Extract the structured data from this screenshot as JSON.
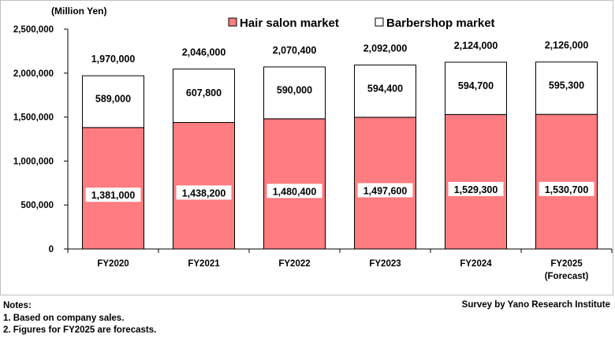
{
  "chart_data": {
    "type": "stacked-bar",
    "unit_label": "(Million Yen)",
    "categories": [
      "FY2020",
      "FY2021",
      "FY2022",
      "FY2023",
      "FY2024",
      "FY2025"
    ],
    "category_sublabels": [
      "",
      "",
      "",
      "",
      "",
      "(Forecast)"
    ],
    "series": [
      {
        "name": "Hair salon market",
        "color": "#ff7c80",
        "values": [
          1381000,
          1438200,
          1480400,
          1497600,
          1529300,
          1530700
        ],
        "labels": [
          "1,381,000",
          "1,438,200",
          "1,480,400",
          "1,497,600",
          "1,529,300",
          "1,530,700"
        ]
      },
      {
        "name": "Barbershop market",
        "color": "#ffffff",
        "values": [
          589000,
          607800,
          590000,
          594400,
          594700,
          595300
        ],
        "labels": [
          "589,000",
          "607,800",
          "590,000",
          "594,400",
          "594,700",
          "595,300"
        ]
      }
    ],
    "totals": [
      1970000,
      2046000,
      2070400,
      2092000,
      2124000,
      2126000
    ],
    "total_labels": [
      "1,970,000",
      "2,046,000",
      "2,070,400",
      "2,092,000",
      "2,124,000",
      "2,126,000"
    ],
    "ylim": [
      0,
      2500000
    ],
    "yticks": [
      0,
      500000,
      1000000,
      1500000,
      2000000,
      2500000
    ],
    "ytick_labels": [
      "0",
      "500,000",
      "1,000,000",
      "1,500,000",
      "2,000,000",
      "2,500,000"
    ],
    "grid": false,
    "legend_position": "top"
  },
  "footer": {
    "notes_title": "Notes:",
    "note_1": "1. Based on company sales.",
    "note_2": "2. Figures for FY2025 are forecasts.",
    "source": "Survey by Yano Research Institute"
  }
}
